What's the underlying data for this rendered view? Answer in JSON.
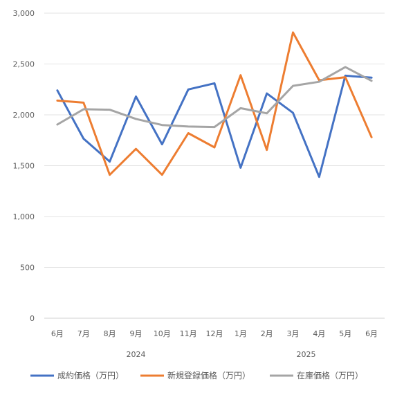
{
  "chart_data": {
    "type": "line",
    "title": "",
    "xlabel": "",
    "ylabel": "",
    "ylim": [
      0,
      3000
    ],
    "yticks": [
      0,
      500,
      1000,
      1500,
      2000,
      2500,
      3000
    ],
    "ytick_labels": [
      "0",
      "500",
      "1,000",
      "1,500",
      "2,000",
      "2,500",
      "3,000"
    ],
    "grid": true,
    "legend": "bottom",
    "categories": [
      "6月",
      "7月",
      "8月",
      "9月",
      "10月",
      "11月",
      "12月",
      "1月",
      "2月",
      "3月",
      "4月",
      "5月",
      "6月"
    ],
    "year_groups": [
      {
        "label": "2024",
        "start": 0,
        "end": 6
      },
      {
        "label": "2025",
        "start": 7,
        "end": 12
      }
    ],
    "series": [
      {
        "name": "成約価格（万円）",
        "color": "#4472C4",
        "values": [
          2240,
          1765,
          1540,
          2180,
          1710,
          2250,
          2310,
          1480,
          2210,
          2020,
          1390,
          2385,
          2365
        ]
      },
      {
        "name": "新規登録価格（万円）",
        "color": "#ED7D31",
        "values": [
          2140,
          2120,
          1410,
          1665,
          1410,
          1820,
          1680,
          2390,
          1655,
          2810,
          2340,
          2370,
          1780
        ]
      },
      {
        "name": "在庫価格（万円）",
        "color": "#A5A5A5",
        "values": [
          1905,
          2055,
          2050,
          1960,
          1900,
          1885,
          1880,
          2065,
          2015,
          2285,
          2325,
          2470,
          2335
        ]
      }
    ]
  }
}
